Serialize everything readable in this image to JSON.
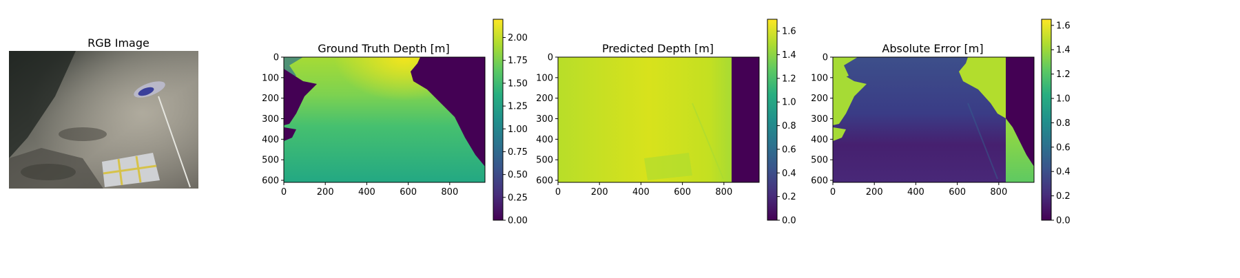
{
  "figure": {
    "panels": [
      {
        "title": "RGB Image"
      },
      {
        "title": "Ground Truth Depth [m]"
      },
      {
        "title": "Predicted Depth [m]"
      },
      {
        "title": "Absolute Error [m]"
      }
    ]
  },
  "chart_data": [
    {
      "type": "heatmap",
      "title": "Ground Truth Depth [m]",
      "colormap": "viridis",
      "xlim": [
        0,
        970
      ],
      "ylim": [
        610,
        0
      ],
      "xticks": [
        0,
        200,
        400,
        600,
        800
      ],
      "yticks": [
        0,
        100,
        200,
        300,
        400,
        500,
        600
      ],
      "colorbar": {
        "range": [
          0,
          2.2
        ],
        "ticks": [
          "0.00",
          "0.25",
          "0.50",
          "0.75",
          "1.00",
          "1.25",
          "1.50",
          "1.75",
          "2.00"
        ],
        "tick_values": [
          0,
          0.25,
          0.5,
          0.75,
          1.0,
          1.25,
          1.5,
          1.75,
          2.0
        ]
      }
    },
    {
      "type": "heatmap",
      "title": "Predicted Depth [m]",
      "colormap": "viridis",
      "xlim": [
        0,
        970
      ],
      "ylim": [
        610,
        0
      ],
      "xticks": [
        0,
        200,
        400,
        600,
        800
      ],
      "yticks": [
        0,
        100,
        200,
        300,
        400,
        500,
        600
      ],
      "colorbar": {
        "range": [
          0,
          1.7
        ],
        "ticks": [
          "0.0",
          "0.2",
          "0.4",
          "0.6",
          "0.8",
          "1.0",
          "1.2",
          "1.4",
          "1.6"
        ],
        "tick_values": [
          0,
          0.2,
          0.4,
          0.6,
          0.8,
          1.0,
          1.2,
          1.4,
          1.6
        ]
      }
    },
    {
      "type": "heatmap",
      "title": "Absolute Error [m]",
      "colormap": "viridis",
      "xlim": [
        0,
        970
      ],
      "ylim": [
        610,
        0
      ],
      "xticks": [
        0,
        200,
        400,
        600,
        800
      ],
      "yticks": [
        0,
        100,
        200,
        300,
        400,
        500,
        600
      ],
      "colorbar": {
        "range": [
          0,
          1.65
        ],
        "ticks": [
          "0.0",
          "0.2",
          "0.4",
          "0.6",
          "0.8",
          "1.0",
          "1.2",
          "1.4",
          "1.6"
        ],
        "tick_values": [
          0,
          0.2,
          0.4,
          0.6,
          0.8,
          1.0,
          1.2,
          1.4,
          1.6
        ]
      }
    }
  ]
}
